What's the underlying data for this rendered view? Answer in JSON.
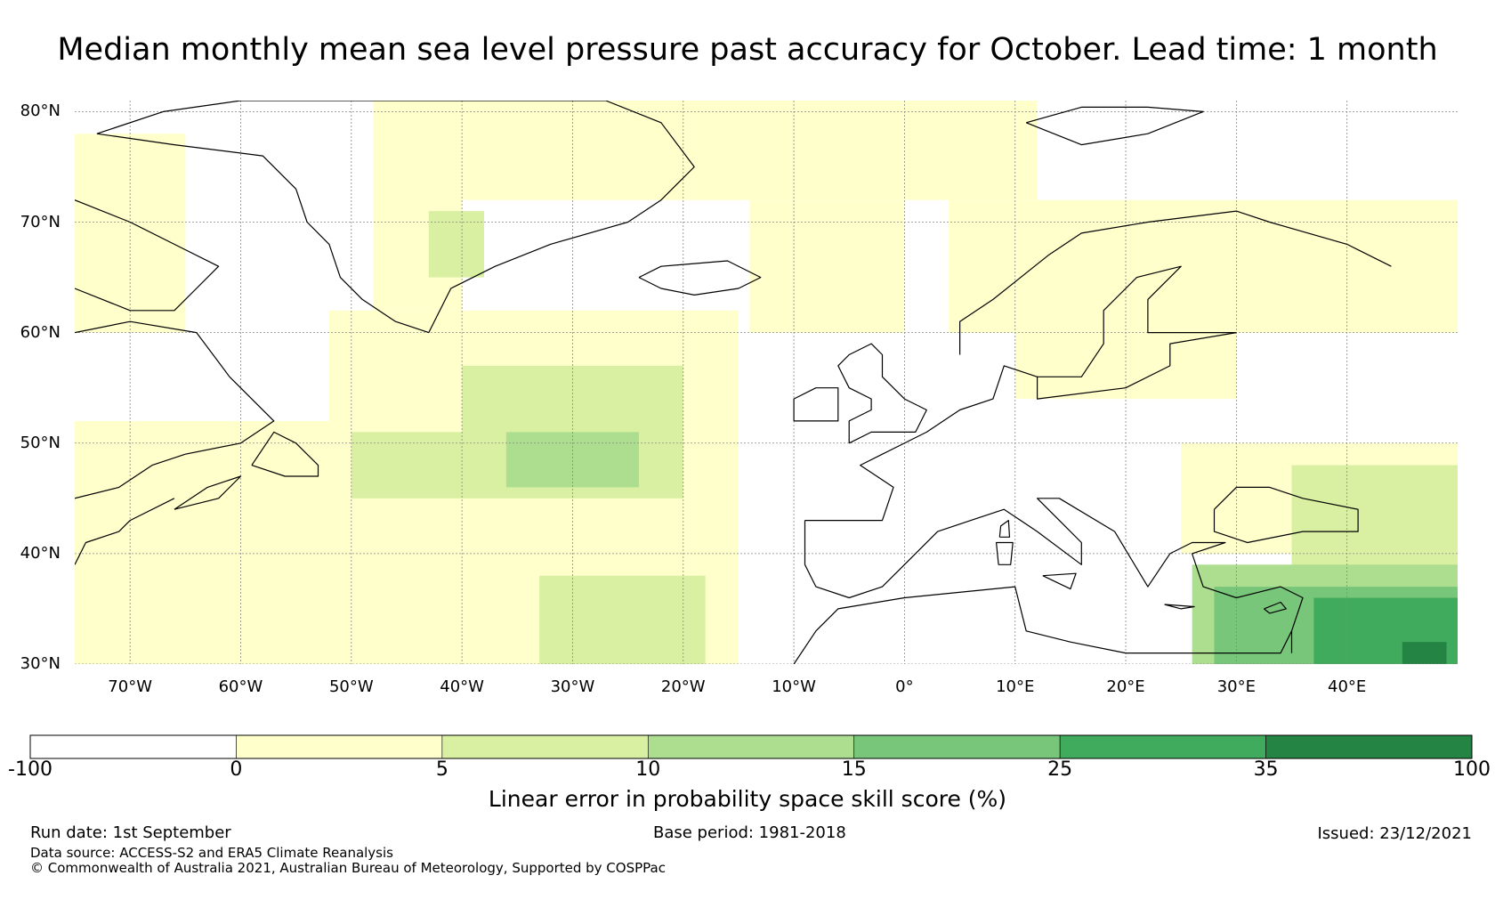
{
  "title": "Median monthly mean sea level pressure past accuracy for October. Lead time: 1 month",
  "map": {
    "lon_range": [
      -75,
      50
    ],
    "lat_range": [
      30,
      81
    ],
    "lat_labels": [
      {
        "lat": 80,
        "text": "80°N"
      },
      {
        "lat": 70,
        "text": "70°N"
      },
      {
        "lat": 60,
        "text": "60°N"
      },
      {
        "lat": 50,
        "text": "50°N"
      },
      {
        "lat": 40,
        "text": "40°N"
      },
      {
        "lat": 30,
        "text": "30°N"
      }
    ],
    "lon_labels": [
      {
        "lon": -70,
        "text": "70°W"
      },
      {
        "lon": -60,
        "text": "60°W"
      },
      {
        "lon": -50,
        "text": "50°W"
      },
      {
        "lon": -40,
        "text": "40°W"
      },
      {
        "lon": -30,
        "text": "30°W"
      },
      {
        "lon": -20,
        "text": "20°W"
      },
      {
        "lon": -10,
        "text": "10°W"
      },
      {
        "lon": 0,
        "text": "0°"
      },
      {
        "lon": 10,
        "text": "10°E"
      },
      {
        "lon": 20,
        "text": "20°E"
      },
      {
        "lon": 30,
        "text": "30°E"
      },
      {
        "lon": 40,
        "text": "40°E"
      }
    ],
    "skill_regions": [
      {
        "bin": 1,
        "lon": [
          -75,
          -65
        ],
        "lat": [
          60,
          78
        ]
      },
      {
        "bin": 1,
        "lon": [
          -75,
          -50
        ],
        "lat": [
          30,
          52
        ]
      },
      {
        "bin": 1,
        "lon": [
          -52,
          -15
        ],
        "lat": [
          30,
          62
        ]
      },
      {
        "bin": 1,
        "lon": [
          -48,
          -40
        ],
        "lat": [
          62,
          81
        ]
      },
      {
        "bin": 1,
        "lon": [
          -40,
          12
        ],
        "lat": [
          72,
          81
        ]
      },
      {
        "bin": 1,
        "lon": [
          -14,
          0
        ],
        "lat": [
          60,
          72
        ]
      },
      {
        "bin": 1,
        "lon": [
          4,
          50
        ],
        "lat": [
          60,
          72
        ]
      },
      {
        "bin": 1,
        "lon": [
          10,
          30
        ],
        "lat": [
          54,
          60
        ]
      },
      {
        "bin": 1,
        "lon": [
          25,
          50
        ],
        "lat": [
          40,
          50
        ]
      },
      {
        "bin": 2,
        "lon": [
          -40,
          -20
        ],
        "lat": [
          45,
          57
        ]
      },
      {
        "bin": 2,
        "lon": [
          -50,
          -40
        ],
        "lat": [
          45,
          51
        ]
      },
      {
        "bin": 2,
        "lon": [
          -33,
          -18
        ],
        "lat": [
          30,
          38
        ]
      },
      {
        "bin": 2,
        "lon": [
          -43,
          -38
        ],
        "lat": [
          65,
          71
        ]
      },
      {
        "bin": 2,
        "lon": [
          35,
          50
        ],
        "lat": [
          37,
          48
        ]
      },
      {
        "bin": 3,
        "lon": [
          -36,
          -24
        ],
        "lat": [
          46,
          51
        ]
      },
      {
        "bin": 3,
        "lon": [
          26,
          50
        ],
        "lat": [
          30,
          39
        ]
      },
      {
        "bin": 4,
        "lon": [
          28,
          50
        ],
        "lat": [
          30,
          37
        ]
      },
      {
        "bin": 5,
        "lon": [
          37,
          50
        ],
        "lat": [
          30,
          36
        ]
      },
      {
        "bin": 6,
        "lon": [
          45,
          49
        ],
        "lat": [
          30,
          32
        ]
      }
    ],
    "land_outlines": [
      {
        "name": "Greenland",
        "points": [
          [
            -73,
            78
          ],
          [
            -67,
            80
          ],
          [
            -60,
            81
          ],
          [
            -50,
            81
          ],
          [
            -40,
            81
          ],
          [
            -27,
            81
          ],
          [
            -22,
            79
          ],
          [
            -19,
            75
          ],
          [
            -22,
            72
          ],
          [
            -25,
            70
          ],
          [
            -32,
            68
          ],
          [
            -37,
            66
          ],
          [
            -41,
            64
          ],
          [
            -43,
            60
          ],
          [
            -46,
            61
          ],
          [
            -49,
            63
          ],
          [
            -51,
            65
          ],
          [
            -52,
            68
          ],
          [
            -54,
            70
          ],
          [
            -55,
            73
          ],
          [
            -58,
            76
          ],
          [
            -66,
            77
          ],
          [
            -73,
            78
          ]
        ]
      },
      {
        "name": "Baffin Island",
        "points": [
          [
            -75,
            72
          ],
          [
            -70,
            70
          ],
          [
            -66,
            68
          ],
          [
            -62,
            66
          ],
          [
            -64,
            64
          ],
          [
            -66,
            62
          ],
          [
            -70,
            62
          ],
          [
            -75,
            64
          ]
        ]
      },
      {
        "name": "Labrador coast",
        "points": [
          [
            -75,
            60
          ],
          [
            -70,
            61
          ],
          [
            -64,
            60
          ],
          [
            -61,
            56
          ],
          [
            -57,
            52
          ],
          [
            -60,
            50
          ],
          [
            -65,
            49
          ],
          [
            -68,
            48
          ],
          [
            -71,
            46
          ],
          [
            -75,
            45
          ]
        ]
      },
      {
        "name": "US east coast",
        "points": [
          [
            -66,
            45
          ],
          [
            -70,
            43
          ],
          [
            -71,
            42
          ],
          [
            -74,
            41
          ],
          [
            -75,
            39
          ]
        ]
      },
      {
        "name": "Newfoundland",
        "points": [
          [
            -59,
            48
          ],
          [
            -57,
            51
          ],
          [
            -55,
            50
          ],
          [
            -53,
            48
          ],
          [
            -53,
            47
          ],
          [
            -56,
            47
          ],
          [
            -59,
            48
          ]
        ]
      },
      {
        "name": "Nova Scotia",
        "points": [
          [
            -66,
            44
          ],
          [
            -63,
            46
          ],
          [
            -60,
            47
          ],
          [
            -62,
            45
          ],
          [
            -66,
            44
          ]
        ]
      },
      {
        "name": "Iceland",
        "points": [
          [
            -24,
            65
          ],
          [
            -22,
            66
          ],
          [
            -16,
            66.5
          ],
          [
            -13,
            65
          ],
          [
            -15,
            64
          ],
          [
            -19,
            63.4
          ],
          [
            -22,
            64
          ],
          [
            -24,
            65
          ]
        ]
      },
      {
        "name": "Svalbard",
        "points": [
          [
            11,
            79
          ],
          [
            16,
            80.4
          ],
          [
            22,
            80.4
          ],
          [
            27,
            80
          ],
          [
            22,
            78
          ],
          [
            16,
            77
          ],
          [
            11,
            79
          ]
        ]
      },
      {
        "name": "Great Britain",
        "points": [
          [
            -5,
            50
          ],
          [
            -3,
            51
          ],
          [
            1,
            51
          ],
          [
            2,
            53
          ],
          [
            0,
            54
          ],
          [
            -2,
            56
          ],
          [
            -2,
            58
          ],
          [
            -3,
            59
          ],
          [
            -5,
            58
          ],
          [
            -6,
            57
          ],
          [
            -5,
            55
          ],
          [
            -3,
            54
          ],
          [
            -3,
            53
          ],
          [
            -5,
            52
          ],
          [
            -5,
            50
          ]
        ]
      },
      {
        "name": "Ireland",
        "points": [
          [
            -10,
            52
          ],
          [
            -6,
            52
          ],
          [
            -6,
            55
          ],
          [
            -8,
            55
          ],
          [
            -10,
            54
          ],
          [
            -10,
            52
          ]
        ]
      },
      {
        "name": "Western Europe",
        "points": [
          [
            -9,
            43
          ],
          [
            -9,
            39
          ],
          [
            -8,
            37
          ],
          [
            -5,
            36
          ],
          [
            -2,
            37
          ],
          [
            0,
            39
          ],
          [
            3,
            42
          ],
          [
            6,
            43
          ],
          [
            9,
            44
          ],
          [
            12,
            42
          ],
          [
            16,
            39
          ],
          [
            16,
            41
          ],
          [
            14,
            43
          ],
          [
            12,
            45
          ],
          [
            14,
            45
          ],
          [
            19,
            42
          ],
          [
            22,
            37
          ],
          [
            24,
            40
          ],
          [
            26,
            41
          ],
          [
            29,
            41
          ],
          [
            26,
            40
          ],
          [
            27,
            37
          ],
          [
            30,
            36
          ],
          [
            34,
            37
          ],
          [
            36,
            36
          ],
          [
            35,
            33
          ],
          [
            35,
            31
          ]
        ]
      },
      {
        "name": "France-Biscay",
        "points": [
          [
            -9,
            43
          ],
          [
            -2,
            43
          ],
          [
            -1,
            46
          ],
          [
            -4,
            48
          ],
          [
            -2,
            49
          ],
          [
            2,
            51
          ],
          [
            5,
            53
          ],
          [
            8,
            54
          ],
          [
            9,
            57
          ],
          [
            12,
            56
          ],
          [
            12,
            54
          ],
          [
            20,
            55
          ],
          [
            24,
            57
          ],
          [
            24,
            59
          ],
          [
            30,
            60
          ]
        ]
      },
      {
        "name": "Scandinavia",
        "points": [
          [
            5,
            58
          ],
          [
            5,
            61
          ],
          [
            8,
            63
          ],
          [
            13,
            67
          ],
          [
            16,
            69
          ],
          [
            22,
            70
          ],
          [
            30,
            71
          ],
          [
            33,
            70
          ],
          [
            40,
            68
          ],
          [
            44,
            66
          ]
        ]
      },
      {
        "name": "Baltic",
        "points": [
          [
            12,
            56
          ],
          [
            16,
            56
          ],
          [
            18,
            59
          ],
          [
            18,
            62
          ],
          [
            21,
            65
          ],
          [
            25,
            66
          ],
          [
            22,
            63
          ],
          [
            22,
            60
          ],
          [
            30,
            60
          ]
        ]
      },
      {
        "name": "Black Sea",
        "points": [
          [
            28,
            44
          ],
          [
            30,
            46
          ],
          [
            33,
            46
          ],
          [
            36,
            45
          ],
          [
            41,
            44
          ],
          [
            41,
            42
          ],
          [
            36,
            42
          ],
          [
            31,
            41
          ],
          [
            28,
            42
          ],
          [
            28,
            44
          ]
        ]
      },
      {
        "name": "North Africa",
        "points": [
          [
            -10,
            30
          ],
          [
            -8,
            33
          ],
          [
            -6,
            35
          ],
          [
            0,
            36
          ],
          [
            10,
            37
          ],
          [
            11,
            33
          ],
          [
            15,
            32
          ],
          [
            20,
            31
          ],
          [
            25,
            31
          ],
          [
            30,
            31
          ],
          [
            34,
            31
          ],
          [
            35,
            33
          ]
        ]
      },
      {
        "name": "Cyprus",
        "points": [
          [
            32.5,
            35
          ],
          [
            34,
            35.6
          ],
          [
            34.5,
            35
          ],
          [
            33,
            34.6
          ],
          [
            32.5,
            35
          ]
        ]
      },
      {
        "name": "Sardinia",
        "points": [
          [
            8.5,
            39
          ],
          [
            9.6,
            39
          ],
          [
            9.8,
            41
          ],
          [
            8.3,
            41
          ],
          [
            8.5,
            39
          ]
        ]
      },
      {
        "name": "Corsica",
        "points": [
          [
            8.6,
            41.5
          ],
          [
            9.5,
            41.5
          ],
          [
            9.4,
            43
          ],
          [
            8.7,
            42.5
          ],
          [
            8.6,
            41.5
          ]
        ]
      },
      {
        "name": "Sicily",
        "points": [
          [
            12.5,
            38
          ],
          [
            15.5,
            38.2
          ],
          [
            15,
            36.8
          ],
          [
            12.5,
            38
          ]
        ]
      },
      {
        "name": "Crete",
        "points": [
          [
            23.5,
            35.4
          ],
          [
            26.2,
            35.2
          ],
          [
            25,
            35
          ],
          [
            23.5,
            35.4
          ]
        ]
      }
    ]
  },
  "legend": {
    "bins": [
      {
        "from": -100,
        "to": 0,
        "color": "#ffffff"
      },
      {
        "from": 0,
        "to": 5,
        "color": "#ffffcc"
      },
      {
        "from": 5,
        "to": 10,
        "color": "#d9f0a3"
      },
      {
        "from": 10,
        "to": 15,
        "color": "#addd8e"
      },
      {
        "from": 15,
        "to": 25,
        "color": "#78c679"
      },
      {
        "from": 25,
        "to": 35,
        "color": "#41ab5d"
      },
      {
        "from": 35,
        "to": 100,
        "color": "#238443"
      }
    ],
    "ticks": [
      "-100",
      "0",
      "5",
      "10",
      "15",
      "25",
      "35",
      "100"
    ],
    "label": "Linear error in probability space skill score (%)"
  },
  "footer": {
    "run_date": "Run date: 1st September",
    "base_period": "Base period: 1981-2018",
    "issued": "Issued: 23/12/2021",
    "data_source": "Data source: ACCESS-S2 and ERA5 Climate Reanalysis",
    "copyright": "© Commonwealth of Australia 2021, Australian Bureau of Meteorology, Supported by COSPPac"
  }
}
